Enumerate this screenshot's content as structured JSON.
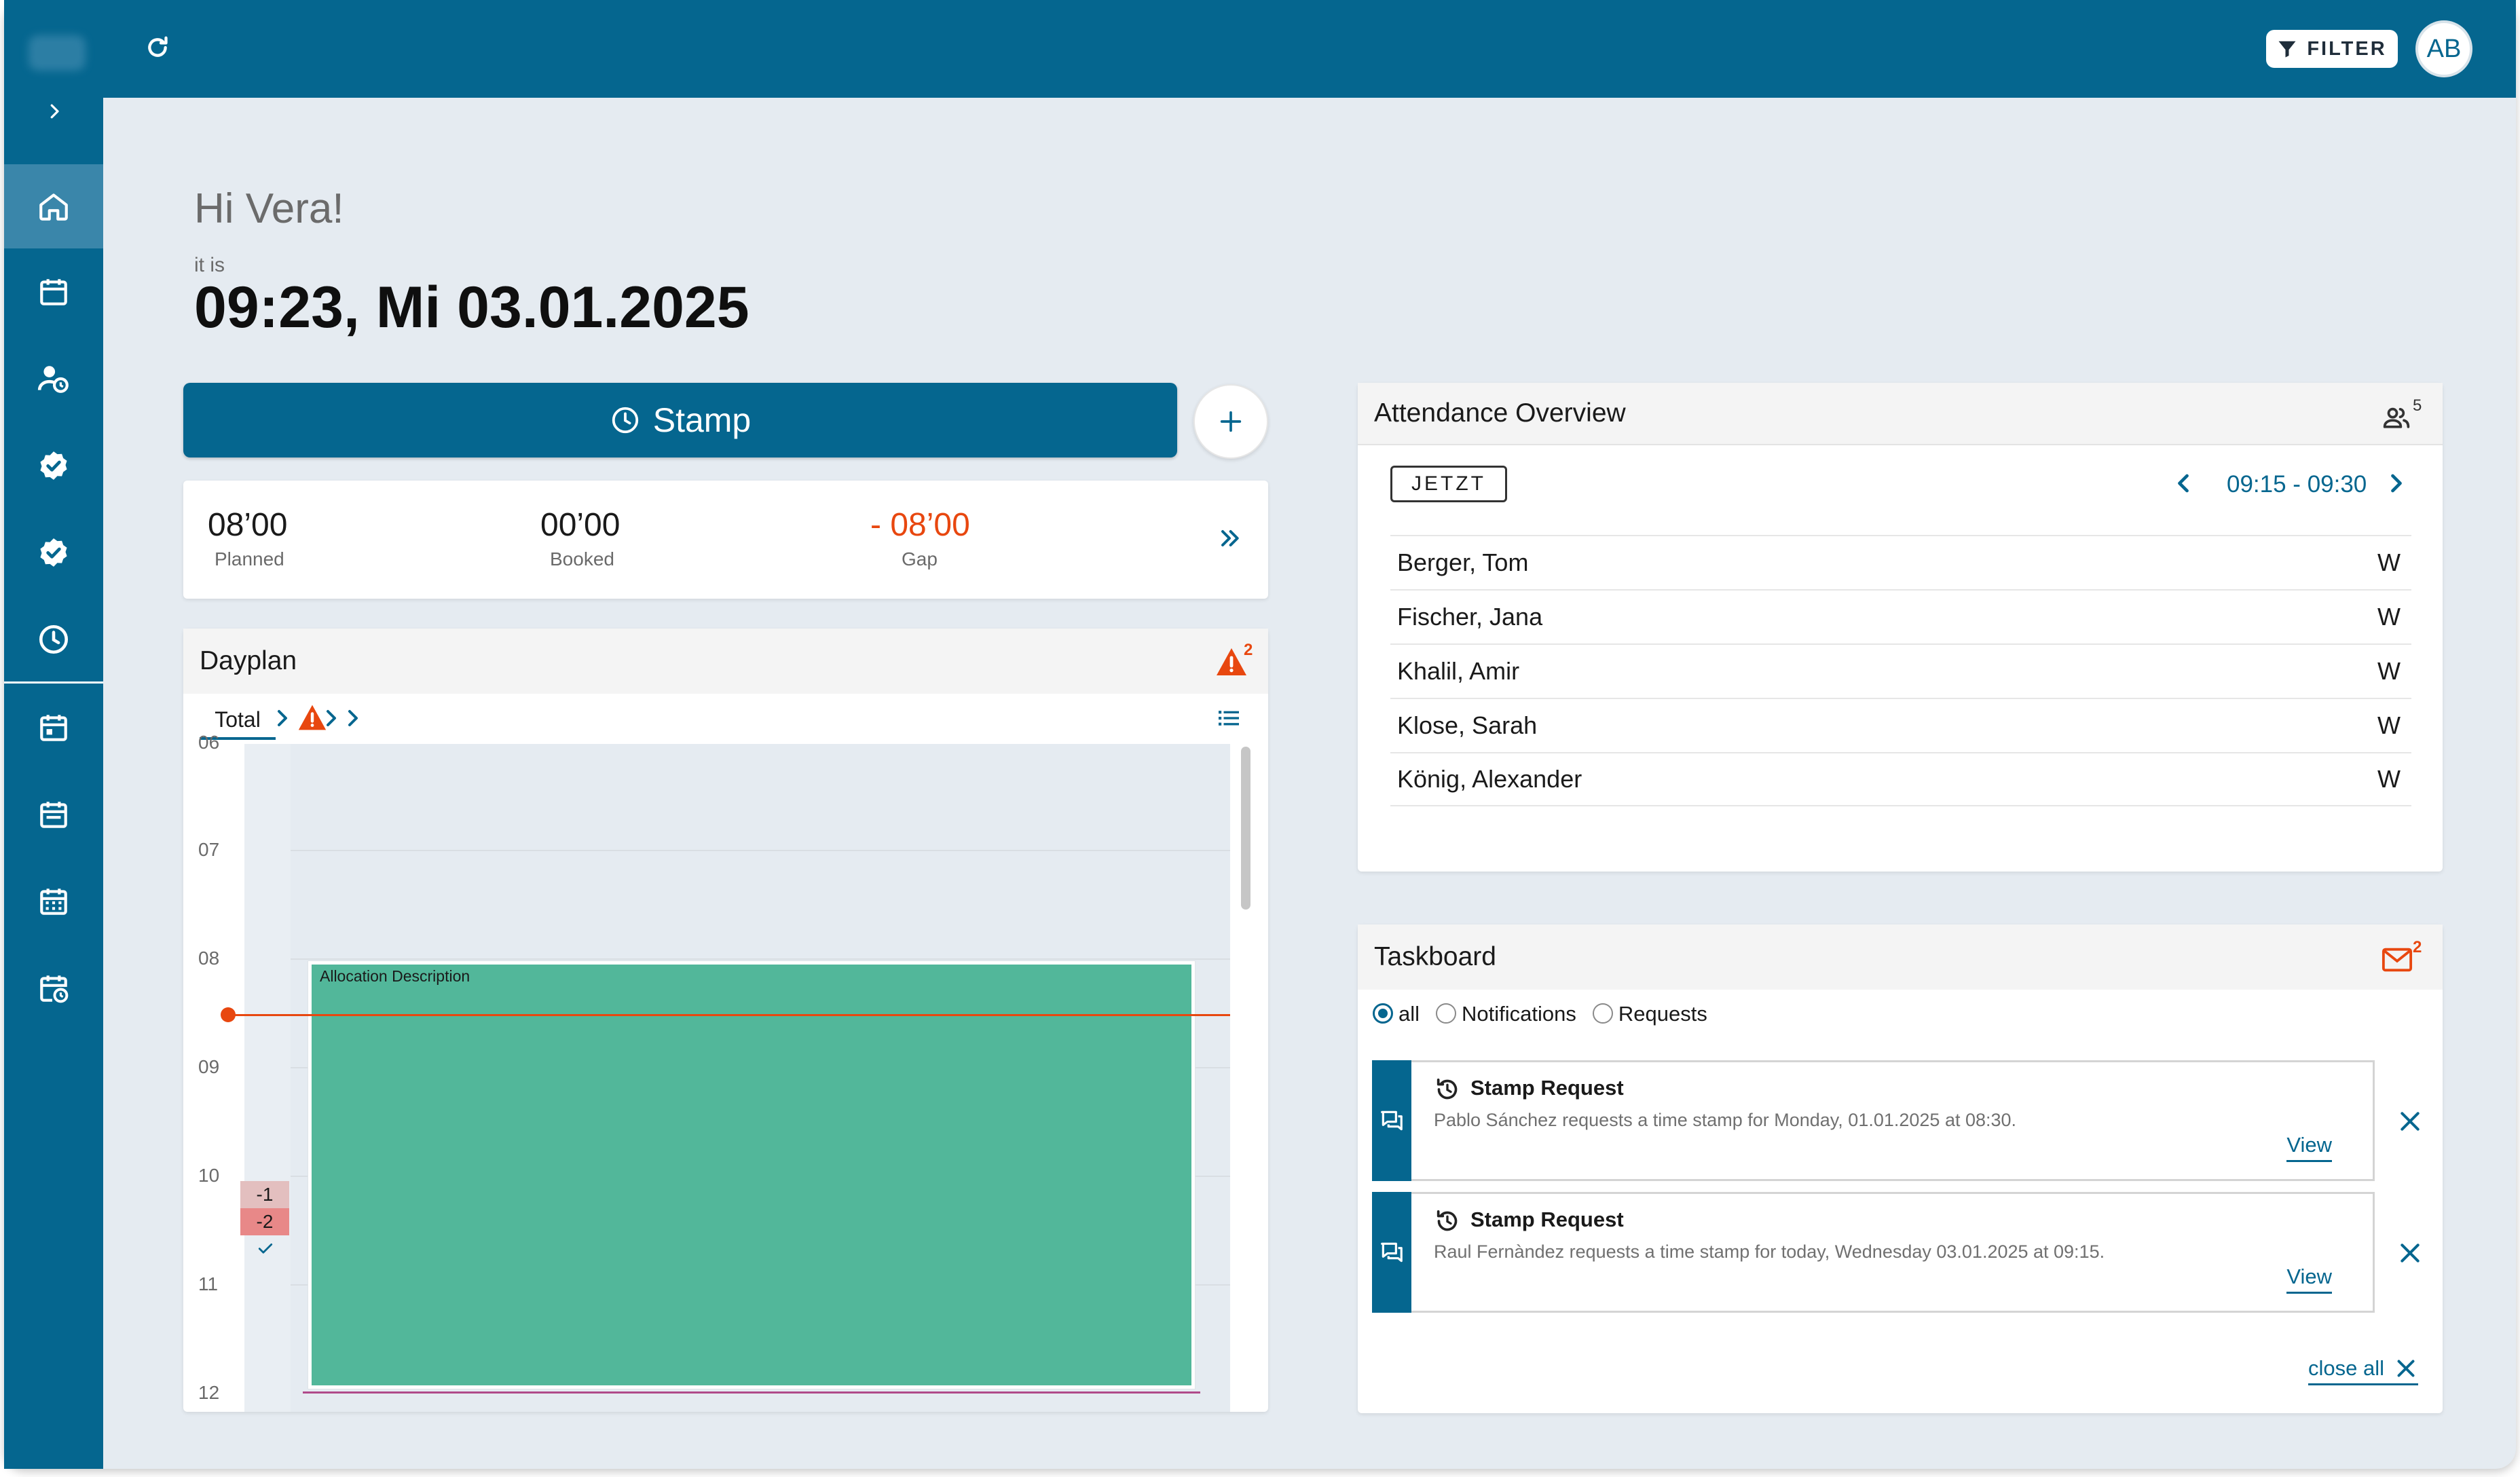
{
  "greeting": "Hi Vera!",
  "it_is_label": "it is",
  "datetime": "09:23, Mi 03.01.2025",
  "toolbar": {
    "filter_label": "FILTER",
    "avatar_initials": "AB"
  },
  "stamp_button_label": "Stamp",
  "summary": {
    "planned": {
      "value": "08’00",
      "label": "Planned"
    },
    "booked": {
      "value": "00’00",
      "label": "Booked"
    },
    "gap": {
      "value": "- 08’00",
      "label": "Gap"
    }
  },
  "dayplan": {
    "title": "Dayplan",
    "warning_count": "2",
    "tab_total": "Total",
    "hours": [
      "06",
      "07",
      "08",
      "09",
      "10",
      "11",
      "12"
    ],
    "badges": [
      "-1",
      "-2"
    ],
    "allocation_label": "Allocation Description"
  },
  "attendance": {
    "title": "Attendance Overview",
    "people_count": "5",
    "now_button": "JETZT",
    "time_range": "09:15 - 09:30",
    "rows": [
      {
        "name": "Berger, Tom",
        "status": "W"
      },
      {
        "name": "Fischer, Jana",
        "status": "W"
      },
      {
        "name": "Khalil, Amir",
        "status": "W"
      },
      {
        "name": "Klose, Sarah",
        "status": "W"
      },
      {
        "name": "König, Alexander",
        "status": "W"
      }
    ]
  },
  "taskboard": {
    "title": "Taskboard",
    "mail_count": "2",
    "filters": [
      "all",
      "Notifications",
      "Requests"
    ],
    "messages": [
      {
        "title": "Stamp Request",
        "text": "Pablo Sánchez requests a time stamp for Monday, 01.01.2025 at 08:30.",
        "action": "View"
      },
      {
        "title": "Stamp Request",
        "text": "Raul Fernàndez requests a time stamp for today, Wednesday 03.01.2025 at 09:15.",
        "action": "View"
      }
    ],
    "close_all": "close all"
  },
  "colors": {
    "brand": "#05668f",
    "accent_red": "#e8470f",
    "allocation": "#52b79a"
  },
  "icons": [
    "home-icon",
    "calendar-icon",
    "user-clock-icon",
    "badge-check-icon",
    "clock-icon",
    "calendar-day-icon",
    "calendar-grid-icon",
    "calendar-clock-icon",
    "refresh-icon",
    "filter-icon",
    "warning-icon",
    "list-icon",
    "users-icon",
    "mail-icon",
    "chat-icon",
    "history-icon",
    "close-icon"
  ]
}
